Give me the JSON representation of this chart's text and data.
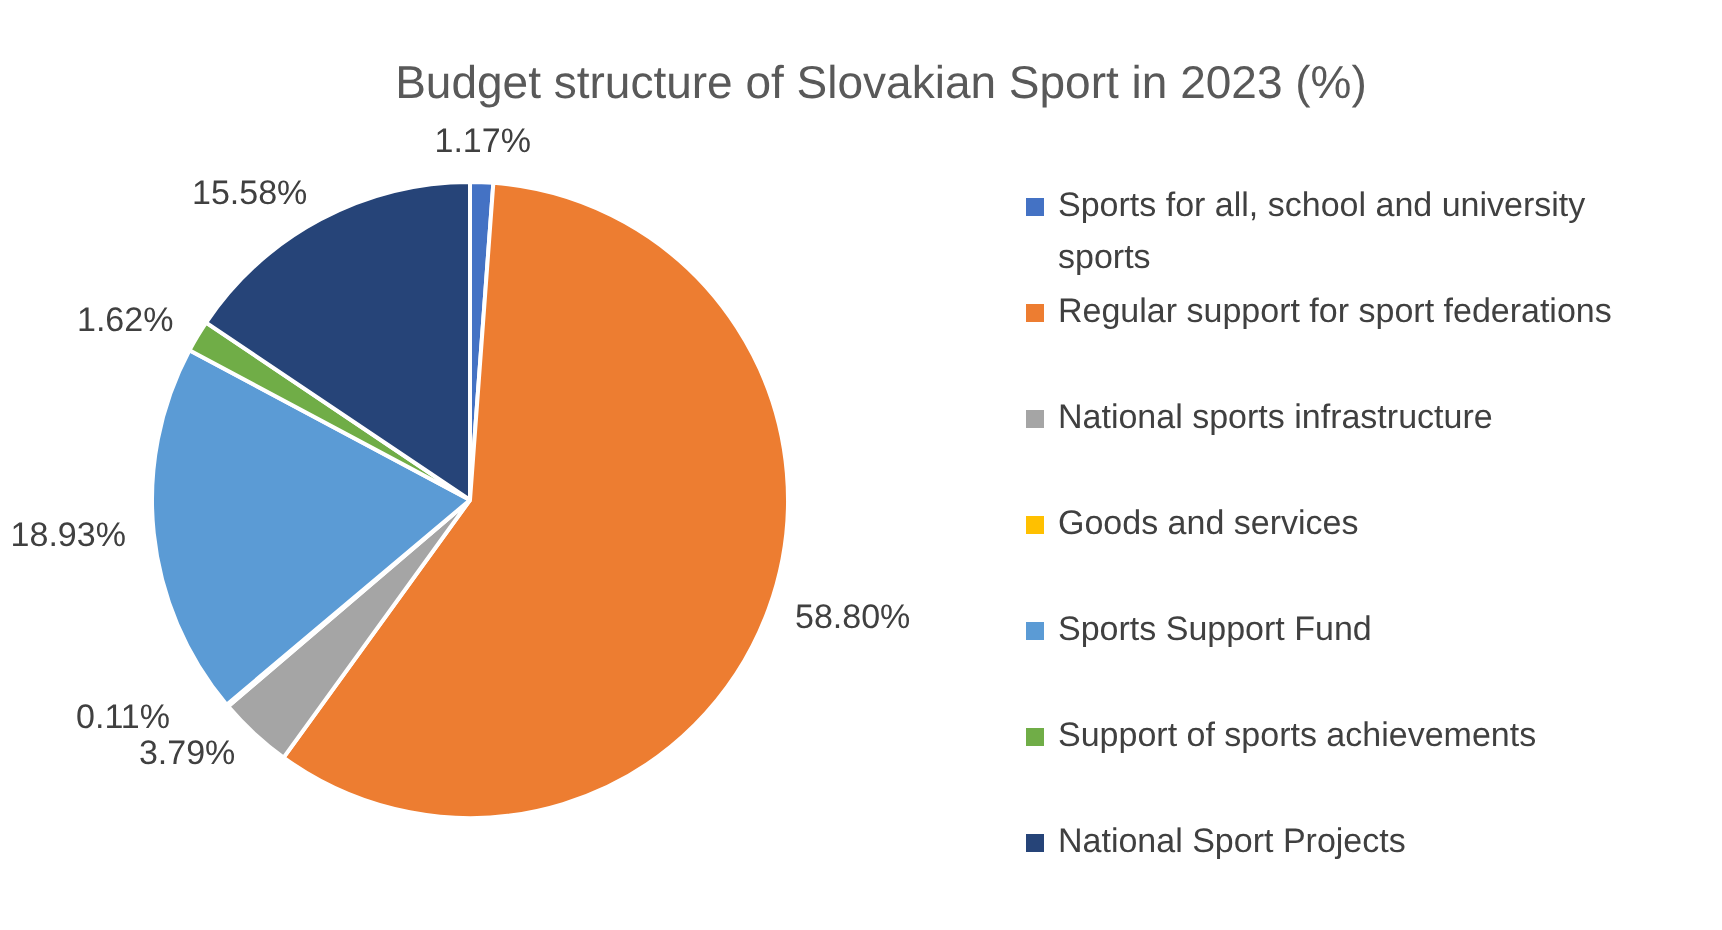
{
  "chart_data": {
    "type": "pie",
    "title": "Budget structure of Slovakian Sport in 2023 (%)",
    "categories": [
      "Sports for all, school and university sports",
      "Regular support for sport federations",
      "National sports infrastructure",
      "Goods and services",
      "Sports Support Fund",
      "Support of sports achievements",
      "National Sport Projects"
    ],
    "values": [
      1.17,
      58.8,
      3.79,
      0.11,
      18.93,
      1.62,
      15.58
    ],
    "value_labels": [
      "1.17%",
      "58.80%",
      "3.79%",
      "0.11%",
      "18.93%",
      "1.62%",
      "15.58%"
    ],
    "colors": [
      "#4472c4",
      "#ed7d31",
      "#a5a5a5",
      "#ffc000",
      "#5b9bd5",
      "#70ad47",
      "#264478"
    ],
    "legend": "right"
  }
}
